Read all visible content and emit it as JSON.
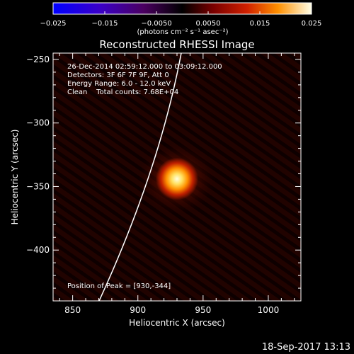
{
  "colorbar": {
    "ticks": [
      "−0.025",
      "−0.015",
      "−0.0050",
      "0.0050",
      "0.015",
      "0.025"
    ],
    "units": "(photons cm⁻² s⁻¹ asec⁻²)",
    "tick_values": [
      -0.025,
      -0.015,
      -0.005,
      0.005,
      0.015,
      0.025
    ],
    "range": [
      -0.025,
      0.025
    ]
  },
  "title": "Reconstructed RHESSI Image",
  "info_lines": [
    "26-Dec-2014 02:59:12.000 to 03:09:12.000",
    "Detectors: 3F 6F 7F 9F, Att 0",
    "Energy Range: 6.0 - 12.0 keV",
    "Clean    Total counts: 7.68E+04"
  ],
  "peak_text": "Position of Peak = [930,-344]",
  "x_axis": {
    "label": "Heliocentric X (arcsec)",
    "ticks": [
      "850",
      "900",
      "950",
      "1000"
    ],
    "tick_values": [
      850,
      900,
      950,
      1000
    ],
    "range": [
      835,
      1025
    ]
  },
  "y_axis": {
    "label": "Heliocentric Y (arcsec)",
    "ticks": [
      "−250",
      "−300",
      "−350",
      "−400"
    ],
    "tick_values": [
      -250,
      -300,
      -350,
      -400
    ],
    "range": [
      -440,
      -245
    ]
  },
  "footer_date": "18-Sep-2017 13:13",
  "source": {
    "x": 930,
    "y": -344
  },
  "colors": {
    "source_core": "#ffffe0",
    "source_mid": "#ff9000",
    "background": "#1a0000",
    "limb": "#ffffff"
  }
}
